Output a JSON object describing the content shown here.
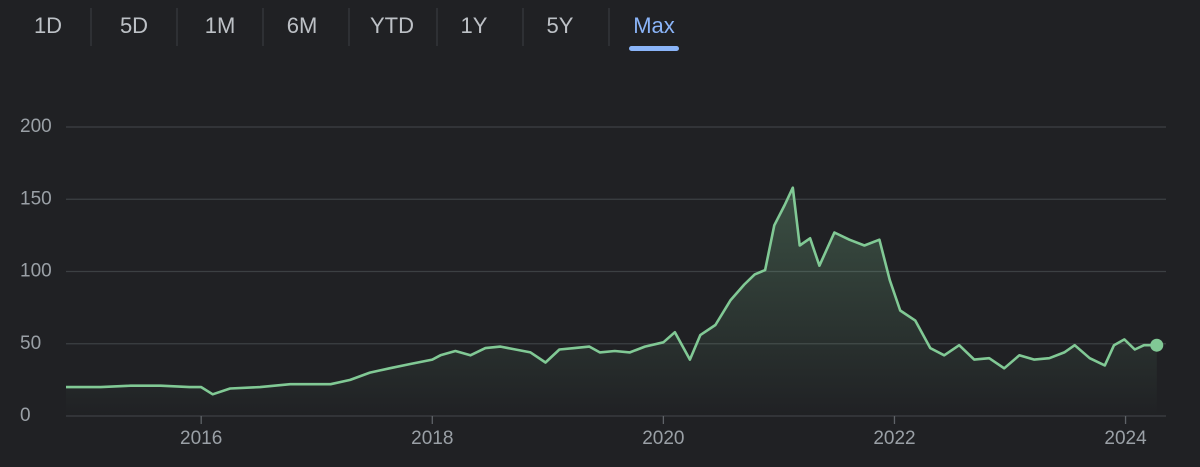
{
  "tabs": [
    "1D",
    "5D",
    "1M",
    "6M",
    "YTD",
    "1Y",
    "5Y",
    "Max"
  ],
  "active_tab": 7,
  "chart_data": {
    "type": "line",
    "color": "#81c995",
    "grid": true,
    "xlim": [
      2014.83,
      2024.35
    ],
    "xticks": [
      2016,
      2018,
      2020,
      2022,
      2024
    ],
    "ylim": [
      0,
      200
    ],
    "yticks": [
      0,
      50,
      100,
      150,
      200
    ],
    "x": [
      2014.83,
      2015.13,
      2015.39,
      2015.65,
      2015.9,
      2016.0,
      2016.1,
      2016.25,
      2016.51,
      2016.77,
      2016.94,
      2017.12,
      2017.29,
      2017.46,
      2017.63,
      2017.81,
      2018.0,
      2018.07,
      2018.2,
      2018.33,
      2018.46,
      2018.59,
      2018.72,
      2018.85,
      2018.98,
      2019.1,
      2019.23,
      2019.36,
      2019.45,
      2019.58,
      2019.71,
      2019.84,
      2020.0,
      2020.1,
      2020.23,
      2020.32,
      2020.45,
      2020.58,
      2020.7,
      2020.79,
      2020.88,
      2020.96,
      2021.05,
      2021.12,
      2021.18,
      2021.27,
      2021.35,
      2021.48,
      2021.61,
      2021.74,
      2021.87,
      2021.96,
      2022.05,
      2022.18,
      2022.31,
      2022.43,
      2022.56,
      2022.69,
      2022.82,
      2022.95,
      2023.08,
      2023.21,
      2023.34,
      2023.47,
      2023.56,
      2023.69,
      2023.82,
      2023.9,
      2023.99,
      2024.08,
      2024.16,
      2024.27
    ],
    "values": [
      20,
      20,
      21,
      21,
      20,
      20,
      15,
      19,
      20,
      22,
      22,
      22,
      25,
      30,
      33,
      36,
      39,
      42,
      45,
      42,
      47,
      48,
      46,
      44,
      37,
      46,
      47,
      48,
      44,
      45,
      44,
      48,
      51,
      58,
      39,
      56,
      63,
      80,
      91,
      98,
      101,
      132,
      146,
      158,
      118,
      123,
      104,
      127,
      122,
      118,
      122,
      94,
      73,
      66,
      47,
      42,
      49,
      39,
      40,
      33,
      42,
      39,
      40,
      44,
      49,
      40,
      35,
      49,
      53,
      46,
      49,
      49
    ]
  }
}
